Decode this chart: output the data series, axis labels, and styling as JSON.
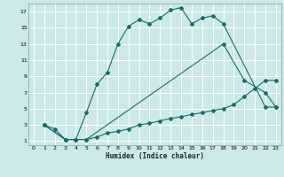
{
  "xlabel": "Humidex (Indice chaleur)",
  "background_color": "#cce8e8",
  "grid_color": "#ffffff",
  "line_color": "#1a6b6b",
  "xlim": [
    -0.5,
    23.5
  ],
  "ylim": [
    0.5,
    18
  ],
  "xticks": [
    0,
    1,
    2,
    3,
    4,
    5,
    6,
    7,
    8,
    9,
    10,
    11,
    12,
    13,
    14,
    15,
    16,
    17,
    18,
    19,
    20,
    21,
    22,
    23
  ],
  "yticks": [
    1,
    3,
    5,
    7,
    9,
    11,
    13,
    15,
    17
  ],
  "line1_x": [
    1,
    2,
    3,
    4,
    5,
    6,
    7,
    8,
    9,
    10,
    11,
    12,
    13,
    14,
    15,
    16,
    17,
    18,
    22,
    23
  ],
  "line1_y": [
    3,
    2.5,
    1.2,
    1.2,
    4.5,
    8,
    9.5,
    13,
    15.2,
    16,
    15.5,
    16.2,
    17.2,
    17.5,
    15.5,
    16.2,
    16.5,
    15.5,
    5.2,
    5.2
  ],
  "line2_x": [
    1,
    3,
    4,
    5,
    6,
    7,
    8,
    9,
    10,
    11,
    12,
    13,
    14,
    15,
    16,
    17,
    18,
    19,
    20,
    21,
    22,
    23
  ],
  "line2_y": [
    3,
    1.2,
    1.2,
    1.2,
    1.5,
    2,
    2.2,
    2.5,
    3,
    3.2,
    3.5,
    3.8,
    4,
    4.3,
    4.5,
    4.8,
    5,
    5.5,
    6.5,
    7.5,
    8.5,
    8.5
  ],
  "line3_x": [
    1,
    3,
    4,
    5,
    18,
    20,
    22,
    23
  ],
  "line3_y": [
    3,
    1.2,
    1.2,
    1.2,
    13,
    8.5,
    7,
    5.2
  ],
  "figsize": [
    3.2,
    2.0
  ],
  "dpi": 100
}
